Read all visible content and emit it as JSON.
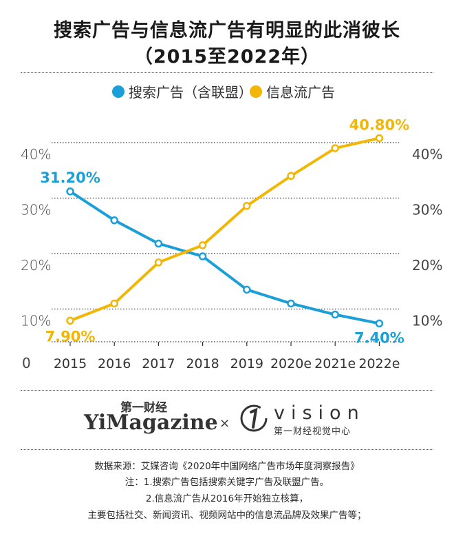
{
  "title": {
    "line1": "搜索广告与信息流广告有明显的此消彼长",
    "line2": "（2015至2022年）"
  },
  "chart_data": {
    "type": "line",
    "categories": [
      "2015",
      "2016",
      "2017",
      "2018",
      "2019",
      "2020e",
      "2021e",
      "2022e"
    ],
    "series": [
      {
        "name": "搜索广告（含联盟）",
        "color": "#1a9fd8",
        "values": [
          31.2,
          26.0,
          21.8,
          19.5,
          13.5,
          11.0,
          9.0,
          7.4
        ]
      },
      {
        "name": "信息流广告",
        "color": "#f2b705",
        "values": [
          7.9,
          11.0,
          18.4,
          21.5,
          28.6,
          34.0,
          39.0,
          40.8
        ]
      }
    ],
    "y_ticks": [
      "10%",
      "20%",
      "30%",
      "40%"
    ],
    "zero_label": "0",
    "ylim": [
      0,
      45
    ],
    "data_labels": [
      {
        "text": "31.20%",
        "series": 0,
        "index": 0
      },
      {
        "text": "7.40%",
        "series": 0,
        "index": 7
      },
      {
        "text": "7.90%",
        "series": 1,
        "index": 0
      },
      {
        "text": "40.80%",
        "series": 1,
        "index": 7
      }
    ],
    "legend_position": "top"
  },
  "brand": {
    "cn": "第一财经",
    "en": "YiMagazine",
    "sep": "×",
    "vision": "vision",
    "vision_sub": "第一财经视觉中心"
  },
  "notes": [
    "数据来源：艾媒咨询《2020年中国网络广告市场年度洞察报告》",
    "注：1.搜索广告包括搜索关键字广告及联盟广告。",
    "2.信息流广告从2016年开始独立核算，",
    "主要包括社交、新闻资讯、视频网站中的信息流品牌及效果广告等；"
  ]
}
